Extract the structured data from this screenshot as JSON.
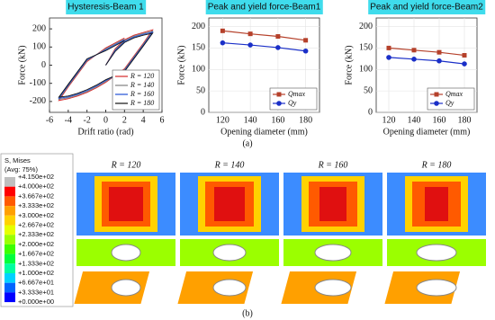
{
  "chart_data": [
    {
      "type": "line",
      "title": "Hysteresis-Beam 1",
      "x_label": "Drift ratio (rad)",
      "y_label": "Force (kN)",
      "x": [
        0,
        1,
        2,
        3,
        4,
        5,
        4,
        2,
        0,
        -1,
        -2,
        -3,
        -4,
        -5,
        -4,
        -2,
        0,
        2
      ],
      "series": [
        {
          "name": "R = 120",
          "color": "#d62728",
          "values": [
            0,
            90,
            140,
            165,
            180,
            195,
            120,
            -20,
            -95,
            -125,
            -150,
            -170,
            -185,
            -195,
            -120,
            20,
            95,
            150
          ]
        },
        {
          "name": "R = 140",
          "color": "#7f7f7f",
          "values": [
            0,
            85,
            135,
            160,
            175,
            188,
            115,
            -25,
            -90,
            -120,
            -145,
            -165,
            -180,
            -188,
            -115,
            25,
            90,
            145
          ]
        },
        {
          "name": "R = 160",
          "color": "#1f4fd6",
          "values": [
            0,
            80,
            130,
            155,
            170,
            182,
            110,
            -30,
            -85,
            -115,
            -140,
            -160,
            -175,
            -182,
            -110,
            30,
            85,
            140
          ]
        },
        {
          "name": "R = 180",
          "color": "#111111",
          "values": [
            0,
            75,
            125,
            150,
            165,
            176,
            105,
            -35,
            -80,
            -110,
            -135,
            -155,
            -170,
            -176,
            -105,
            35,
            80,
            135
          ]
        }
      ],
      "xlim": [
        -6,
        6
      ],
      "xticks": [
        -6,
        -4,
        -2,
        0,
        2,
        4,
        6
      ],
      "ylim": [
        -260,
        260
      ],
      "yticks": [
        -200,
        -100,
        0,
        100,
        200
      ],
      "grid": false,
      "legend": "lower-right"
    },
    {
      "type": "line",
      "title": "Peak and yield force-Beam1",
      "x_label": "Opening diameter (mm)",
      "y_label": "Force (kN)",
      "x": [
        120,
        140,
        160,
        180
      ],
      "series": [
        {
          "name": "Qmax",
          "color": "#b5402a",
          "marker": "square",
          "values": [
            190,
            183,
            177,
            168
          ]
        },
        {
          "name": "Qy",
          "color": "#1a2fc8",
          "marker": "circle",
          "values": [
            162,
            157,
            151,
            143
          ]
        }
      ],
      "xlim": [
        110,
        190
      ],
      "xticks": [
        120,
        140,
        160,
        180
      ],
      "ylim": [
        0,
        220
      ],
      "yticks": [
        0,
        50,
        100,
        150,
        200
      ],
      "grid": true,
      "legend": "lower-right"
    },
    {
      "type": "line",
      "title": "Peak and yield force-Beam2",
      "x_label": "Opening diameter (mm)",
      "y_label": "Force (kN)",
      "x": [
        120,
        140,
        160,
        180
      ],
      "series": [
        {
          "name": "Qmax",
          "color": "#b5402a",
          "marker": "square",
          "values": [
            150,
            145,
            140,
            133
          ]
        },
        {
          "name": "Qy",
          "color": "#1a2fc8",
          "marker": "circle",
          "values": [
            128,
            124,
            120,
            113
          ]
        }
      ],
      "xlim": [
        110,
        190
      ],
      "xticks": [
        120,
        140,
        160,
        180
      ],
      "ylim": [
        0,
        220
      ],
      "yticks": [
        0,
        50,
        100,
        150,
        200
      ],
      "grid": true,
      "legend": "lower-right"
    }
  ],
  "caption_a": "(a)",
  "caption_b": "(b)",
  "contour_panels": [
    "R = 120",
    "R = 140",
    "R = 160",
    "R = 180"
  ],
  "contour_legend": {
    "title": "S, Mises",
    "subtitle": "(Avg: 75%)",
    "labels": [
      "+4.150e+02",
      "+4.000e+02",
      "+3.667e+02",
      "+3.333e+02",
      "+3.000e+02",
      "+2.667e+02",
      "+2.333e+02",
      "+2.000e+02",
      "+1.667e+02",
      "+1.333e+02",
      "+1.000e+02",
      "+6.667e+01",
      "+3.333e+01",
      "+0.000e+00"
    ],
    "colors": [
      "#bfbfbf",
      "#ff0000",
      "#ff5a00",
      "#ffa000",
      "#ffd200",
      "#e6ff00",
      "#9bff00",
      "#3cff00",
      "#00ff3c",
      "#00ffa0",
      "#00d2ff",
      "#0064ff",
      "#0000ff"
    ]
  }
}
